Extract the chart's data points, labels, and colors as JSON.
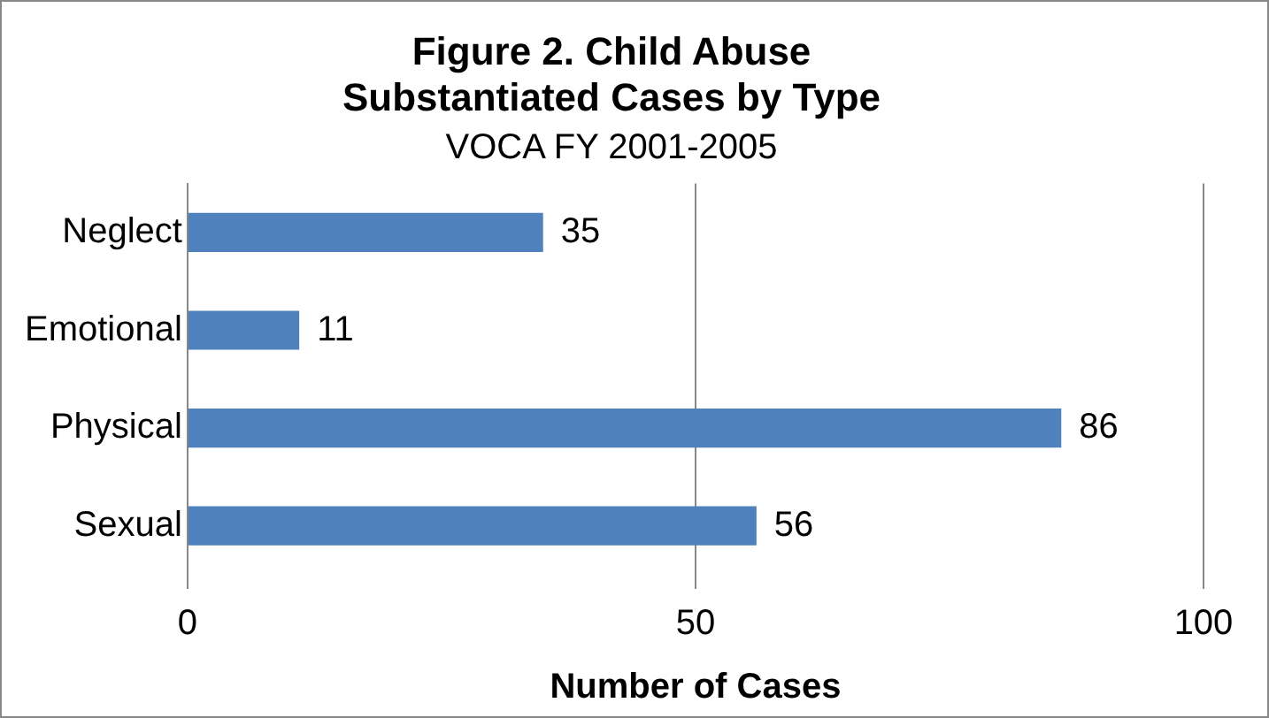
{
  "chart_data": {
    "type": "bar",
    "orientation": "horizontal",
    "title": "Figure 2. Child Abuse\nSubstantiated Cases by Type",
    "subtitle": "VOCA FY 2001-2005",
    "xlabel": "Number of Cases",
    "categories": [
      "Neglect",
      "Emotional",
      "Physical",
      "Sexual"
    ],
    "values": [
      35,
      11,
      86,
      56
    ],
    "color": "#4f81bd",
    "xlim": [
      0,
      100
    ],
    "xticks": [
      0,
      50,
      100
    ],
    "grid": "x",
    "data_labels": true
  }
}
